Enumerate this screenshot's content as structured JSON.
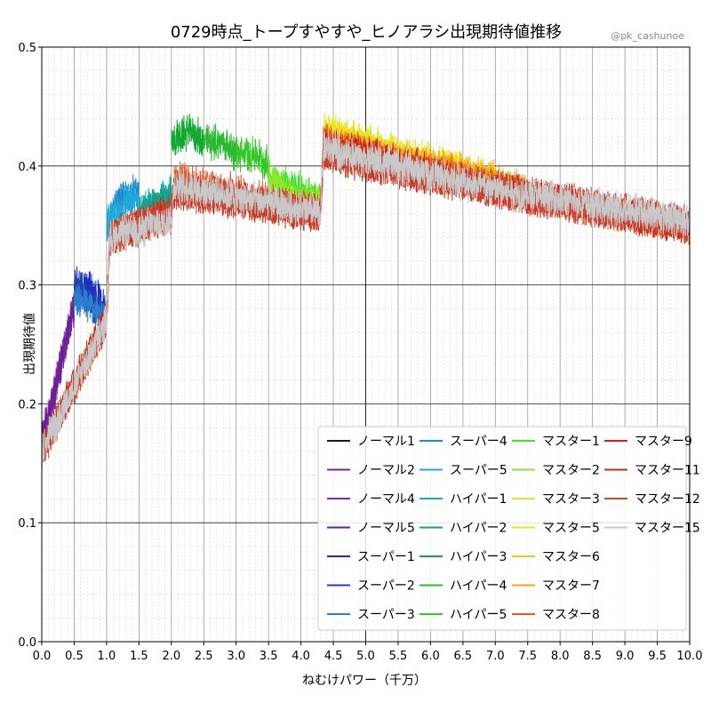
{
  "chart_data": {
    "type": "line",
    "title": "0729時点_トープすやすや_ヒノアラシ出現期待値推移",
    "credit": "@pk_cashunoe",
    "xlabel": "ねむけパワー（千万）",
    "ylabel": "出現期待値",
    "xlim": [
      0,
      10
    ],
    "ylim": [
      0,
      0.5
    ],
    "xticks": [
      "0.0",
      "0.5",
      "1.0",
      "1.5",
      "2.0",
      "2.5",
      "3.0",
      "3.5",
      "4.0",
      "4.5",
      "5.0",
      "5.5",
      "6.0",
      "6.5",
      "7.0",
      "7.5",
      "8.0",
      "8.5",
      "9.0",
      "9.5",
      "10.0"
    ],
    "yticks": [
      "0.0",
      "0.1",
      "0.2",
      "0.3",
      "0.4",
      "0.5"
    ],
    "grid": true,
    "legend_position": "lower-right",
    "series": [
      {
        "name": "ノーマル1",
        "color": "#1a1a1a",
        "x_range": [
          0.0,
          0.1
        ],
        "trend": [
          [
            0.0,
            0.16
          ],
          [
            0.1,
            0.18
          ]
        ]
      },
      {
        "name": "ノーマル2",
        "color": "#7b2a8e",
        "x_range": [
          0.0,
          0.5
        ],
        "trend": [
          [
            0.0,
            0.17
          ],
          [
            0.2,
            0.21
          ],
          [
            0.4,
            0.26
          ],
          [
            0.5,
            0.28
          ]
        ]
      },
      {
        "name": "ノーマル4",
        "color": "#8a2ba0",
        "x_range": [
          0.0,
          0.5
        ],
        "trend": [
          [
            0.0,
            0.17
          ],
          [
            0.2,
            0.21
          ],
          [
            0.4,
            0.26
          ],
          [
            0.5,
            0.29
          ]
        ]
      },
      {
        "name": "ノーマル5",
        "color": "#6a1f9a",
        "x_range": [
          0.0,
          0.5
        ],
        "trend": [
          [
            0.0,
            0.17
          ],
          [
            0.2,
            0.21
          ],
          [
            0.4,
            0.26
          ],
          [
            0.5,
            0.28
          ]
        ]
      },
      {
        "name": "スーパー1",
        "color": "#1a2fbf",
        "x_range": [
          0.5,
          1.0
        ],
        "trend": [
          [
            0.5,
            0.3
          ],
          [
            0.7,
            0.3
          ],
          [
            1.0,
            0.28
          ]
        ]
      },
      {
        "name": "スーパー2",
        "color": "#2440b0",
        "x_range": [
          0.5,
          1.0
        ],
        "trend": [
          [
            0.5,
            0.3
          ],
          [
            0.7,
            0.29
          ],
          [
            1.0,
            0.27
          ]
        ]
      },
      {
        "name": "スーパー3",
        "color": "#2a7fd0",
        "x_range": [
          0.5,
          1.0
        ],
        "trend": [
          [
            0.5,
            0.29
          ],
          [
            0.8,
            0.28
          ],
          [
            1.0,
            0.27
          ]
        ]
      },
      {
        "name": "スーパー4",
        "color": "#1f8ad4",
        "x_range": [
          1.0,
          1.5
        ],
        "trend": [
          [
            1.0,
            0.35
          ],
          [
            1.2,
            0.37
          ],
          [
            1.5,
            0.38
          ]
        ]
      },
      {
        "name": "スーパー5",
        "color": "#20a8d8",
        "x_range": [
          1.0,
          1.5
        ],
        "trend": [
          [
            1.0,
            0.35
          ],
          [
            1.3,
            0.37
          ],
          [
            1.5,
            0.37
          ]
        ]
      },
      {
        "name": "ハイパー1",
        "color": "#1ab0b0",
        "x_range": [
          1.5,
          2.0
        ],
        "trend": [
          [
            1.5,
            0.36
          ],
          [
            1.8,
            0.37
          ],
          [
            2.0,
            0.38
          ]
        ]
      },
      {
        "name": "ハイパー2",
        "color": "#16a08a",
        "x_range": [
          1.5,
          2.0
        ],
        "trend": [
          [
            1.5,
            0.36
          ],
          [
            1.8,
            0.37
          ],
          [
            2.0,
            0.37
          ]
        ]
      },
      {
        "name": "ハイパー3",
        "color": "#12a832",
        "x_range": [
          2.0,
          2.5
        ],
        "trend": [
          [
            2.0,
            0.42
          ],
          [
            2.3,
            0.43
          ],
          [
            2.5,
            0.42
          ]
        ]
      },
      {
        "name": "ハイパー4",
        "color": "#2cb830",
        "x_range": [
          2.5,
          3.0
        ],
        "trend": [
          [
            2.5,
            0.42
          ],
          [
            2.8,
            0.42
          ],
          [
            3.0,
            0.41
          ]
        ]
      },
      {
        "name": "ハイパー5",
        "color": "#36c82a",
        "x_range": [
          3.0,
          3.5
        ],
        "trend": [
          [
            3.0,
            0.41
          ],
          [
            3.3,
            0.41
          ],
          [
            3.5,
            0.4
          ]
        ]
      },
      {
        "name": "マスター1",
        "color": "#44e02c",
        "x_range": [
          3.5,
          4.3
        ],
        "trend": [
          [
            3.5,
            0.39
          ],
          [
            4.0,
            0.38
          ],
          [
            4.3,
            0.37
          ]
        ]
      },
      {
        "name": "マスター2",
        "color": "#8ee82a",
        "x_range": [
          3.5,
          4.3
        ],
        "trend": [
          [
            3.5,
            0.39
          ],
          [
            4.0,
            0.37
          ],
          [
            4.3,
            0.37
          ]
        ]
      },
      {
        "name": "マスター3",
        "color": "#d8e830",
        "x_range": [
          4.35,
          5.5
        ],
        "trend": [
          [
            4.35,
            0.43
          ],
          [
            5.0,
            0.42
          ],
          [
            5.5,
            0.41
          ]
        ]
      },
      {
        "name": "マスター5",
        "color": "#f2e21c",
        "x_range": [
          4.35,
          6.5
        ],
        "trend": [
          [
            4.35,
            0.43
          ],
          [
            5.5,
            0.41
          ],
          [
            6.5,
            0.4
          ]
        ]
      },
      {
        "name": "マスター6",
        "color": "#f2c81c",
        "x_range": [
          4.35,
          7.0
        ],
        "trend": [
          [
            4.35,
            0.42
          ],
          [
            6.0,
            0.4
          ],
          [
            7.0,
            0.39
          ]
        ]
      },
      {
        "name": "マスター7",
        "color": "#f0a020",
        "x_range": [
          4.35,
          7.5
        ],
        "trend": [
          [
            4.35,
            0.42
          ],
          [
            6.0,
            0.4
          ],
          [
            7.5,
            0.38
          ]
        ]
      },
      {
        "name": "マスター8",
        "color": "#e85a28",
        "x_range": [
          0.0,
          10.0
        ],
        "trend": [
          [
            0.0,
            0.16
          ],
          [
            1.0,
            0.27
          ],
          [
            1.05,
            0.34
          ],
          [
            2.0,
            0.36
          ],
          [
            2.05,
            0.39
          ],
          [
            4.3,
            0.36
          ],
          [
            4.35,
            0.42
          ],
          [
            7.0,
            0.38
          ],
          [
            10.0,
            0.35
          ]
        ]
      },
      {
        "name": "マスター9",
        "color": "#d42010",
        "x_range": [
          0.0,
          10.0
        ],
        "trend": [
          [
            0.0,
            0.16
          ],
          [
            1.0,
            0.27
          ],
          [
            1.05,
            0.34
          ],
          [
            2.0,
            0.36
          ],
          [
            2.05,
            0.38
          ],
          [
            4.3,
            0.36
          ],
          [
            4.35,
            0.42
          ],
          [
            7.0,
            0.38
          ],
          [
            10.0,
            0.35
          ]
        ]
      },
      {
        "name": "マスター11",
        "color": "#c0301a",
        "x_range": [
          0.0,
          10.0
        ],
        "trend": [
          [
            0.0,
            0.16
          ],
          [
            1.0,
            0.27
          ],
          [
            1.05,
            0.34
          ],
          [
            2.0,
            0.36
          ],
          [
            2.05,
            0.38
          ],
          [
            4.3,
            0.36
          ],
          [
            4.35,
            0.41
          ],
          [
            7.0,
            0.38
          ],
          [
            10.0,
            0.35
          ]
        ]
      },
      {
        "name": "マスター12",
        "color": "#c84a3a",
        "x_range": [
          0.0,
          10.0
        ],
        "trend": [
          [
            0.0,
            0.16
          ],
          [
            1.0,
            0.27
          ],
          [
            1.05,
            0.34
          ],
          [
            2.0,
            0.36
          ],
          [
            2.05,
            0.38
          ],
          [
            4.3,
            0.36
          ],
          [
            4.35,
            0.41
          ],
          [
            7.0,
            0.38
          ],
          [
            10.0,
            0.35
          ]
        ]
      },
      {
        "name": "マスター15",
        "color": "#c8c8c8",
        "x_range": [
          0.0,
          10.0
        ],
        "trend": [
          [
            0.0,
            0.16
          ],
          [
            1.0,
            0.27
          ],
          [
            1.05,
            0.34
          ],
          [
            2.0,
            0.355
          ],
          [
            2.05,
            0.385
          ],
          [
            4.3,
            0.36
          ],
          [
            4.35,
            0.415
          ],
          [
            7.0,
            0.38
          ],
          [
            10.0,
            0.355
          ]
        ]
      }
    ]
  }
}
